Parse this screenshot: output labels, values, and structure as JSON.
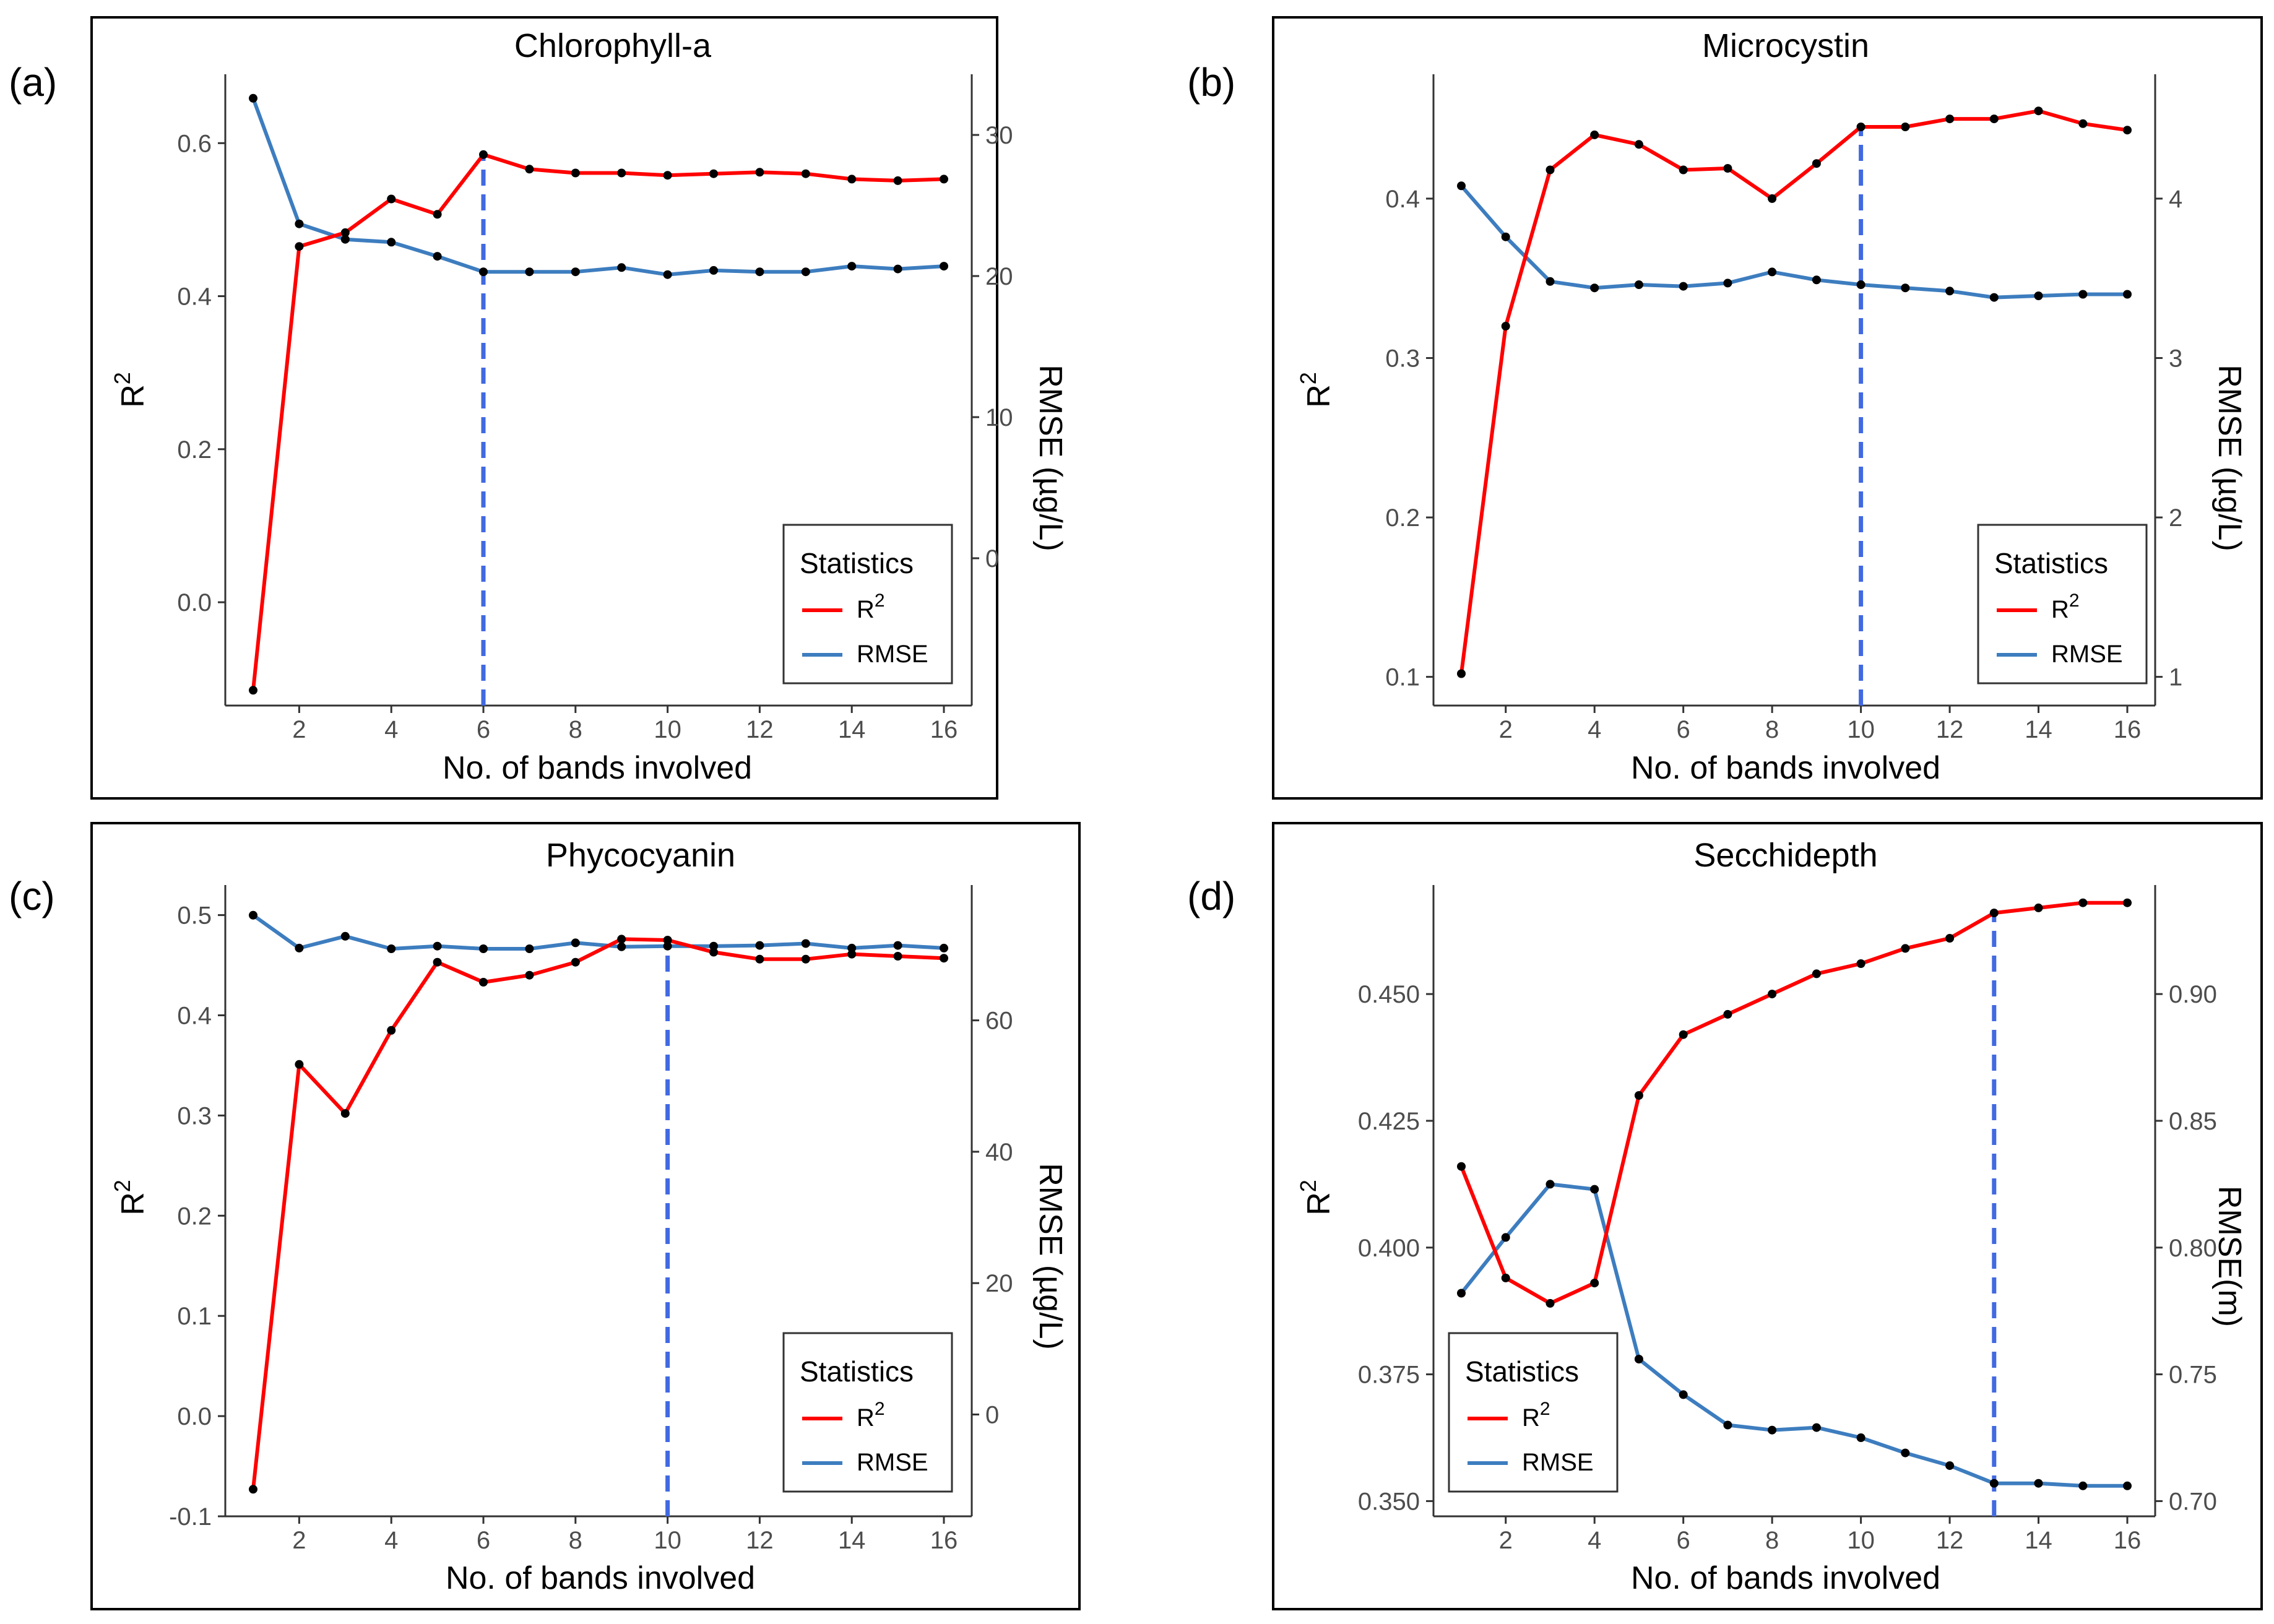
{
  "colors": {
    "r2": "#ff0000",
    "rmse": "#3d7dbf",
    "marker": "#000000",
    "vline": "#4169e1",
    "frame": "#000000"
  },
  "chart_data": [
    {
      "type": "line",
      "letter": "(a)",
      "title": "Chlorophyll-a",
      "xlabel": "No. of bands involved",
      "ylabel_main": "R",
      "ylabel_sup": "2",
      "y2label": "RMSE (µg/L)",
      "x": [
        1,
        2,
        3,
        4,
        5,
        6,
        7,
        8,
        9,
        10,
        11,
        12,
        13,
        14,
        15,
        16
      ],
      "xticks": [
        "2",
        "4",
        "6",
        "8",
        "10",
        "12",
        "14",
        "16"
      ],
      "xtick_values": [
        2,
        4,
        6,
        8,
        10,
        12,
        14,
        16
      ],
      "ylim": [
        -0.135,
        0.69
      ],
      "yticks": [
        "0.0",
        "0.2",
        "0.4",
        "0.6"
      ],
      "ytick_values": [
        0.0,
        0.2,
        0.4,
        0.6
      ],
      "y2lim": [
        -10.44,
        34.3
      ],
      "y2ticks": [
        "0",
        "10",
        "20",
        "30"
      ],
      "y2tick_values": [
        0,
        10,
        20,
        30
      ],
      "vline_x": 6,
      "series": [
        {
          "name": "R2",
          "axis": "left",
          "values": [
            -0.115,
            0.465,
            0.483,
            0.527,
            0.507,
            0.585,
            0.566,
            0.561,
            0.561,
            0.558,
            0.56,
            0.562,
            0.56,
            0.553,
            0.551,
            0.553
          ]
        },
        {
          "name": "RMSE",
          "axis": "right",
          "values": [
            32.6,
            23.7,
            22.6,
            22.4,
            21.4,
            20.3,
            20.3,
            20.3,
            20.6,
            20.1,
            20.4,
            20.3,
            20.3,
            20.7,
            20.5,
            20.7
          ]
        }
      ],
      "legend": {
        "title": "Statistics",
        "items": [
          {
            "main": "R",
            "sup": "2"
          },
          {
            "main": "RMSE",
            "sup": ""
          }
        ]
      }
    },
    {
      "type": "line",
      "letter": "(b)",
      "title": "Microcystin",
      "xlabel": "No. of bands involved",
      "ylabel_main": "R",
      "ylabel_sup": "2",
      "y2label": "RMSE (µg/L)",
      "x": [
        1,
        2,
        3,
        4,
        5,
        6,
        7,
        8,
        9,
        10,
        11,
        12,
        13,
        14,
        15,
        16
      ],
      "xticks": [
        "2",
        "4",
        "6",
        "8",
        "10",
        "12",
        "14",
        "16"
      ],
      "xtick_values": [
        2,
        4,
        6,
        8,
        10,
        12,
        14,
        16
      ],
      "ylim": [
        0.082,
        0.478
      ],
      "yticks": [
        "0.1",
        "0.2",
        "0.3",
        "0.4"
      ],
      "ytick_values": [
        0.1,
        0.2,
        0.3,
        0.4
      ],
      "y2lim": [
        0.82,
        4.78
      ],
      "y2ticks": [
        "1",
        "2",
        "3",
        "4"
      ],
      "y2tick_values": [
        1,
        2,
        3,
        4
      ],
      "vline_x": 10,
      "series": [
        {
          "name": "R2",
          "axis": "left",
          "values": [
            0.102,
            0.32,
            0.418,
            0.44,
            0.434,
            0.418,
            0.419,
            0.4,
            0.422,
            0.445,
            0.445,
            0.45,
            0.45,
            0.455,
            0.447,
            0.443
          ]
        },
        {
          "name": "RMSE",
          "axis": "right",
          "values": [
            4.08,
            3.76,
            3.48,
            3.44,
            3.46,
            3.45,
            3.47,
            3.54,
            3.49,
            3.46,
            3.44,
            3.42,
            3.38,
            3.39,
            3.4,
            3.4
          ]
        }
      ],
      "legend": {
        "title": "Statistics",
        "items": [
          {
            "main": "R",
            "sup": "2"
          },
          {
            "main": "RMSE",
            "sup": ""
          }
        ]
      }
    },
    {
      "type": "line",
      "letter": "(c)",
      "title": "Phycocyanin",
      "xlabel": "No. of bands involved",
      "ylabel_main": "R",
      "ylabel_sup": "2",
      "y2label": "RMSE (µg/L)",
      "x": [
        1,
        2,
        3,
        4,
        5,
        6,
        7,
        8,
        9,
        10,
        11,
        12,
        13,
        14,
        15,
        16
      ],
      "xticks": [
        "2",
        "4",
        "6",
        "8",
        "10",
        "12",
        "14",
        "16"
      ],
      "xtick_values": [
        2,
        4,
        6,
        8,
        10,
        12,
        14,
        16
      ],
      "ylim": [
        -0.1,
        0.53
      ],
      "yticks": [
        "-0.1",
        "0.0",
        "0.1",
        "0.2",
        "0.3",
        "0.4",
        "0.5"
      ],
      "ytick_values": [
        -0.1,
        0.0,
        0.1,
        0.2,
        0.3,
        0.4,
        0.5
      ],
      "y2lim": [
        -15.5,
        80.6
      ],
      "y2ticks": [
        "0",
        "20",
        "40",
        "60"
      ],
      "y2tick_values": [
        0,
        20,
        40,
        60
      ],
      "vline_x": 10,
      "series": [
        {
          "name": "R2",
          "axis": "left",
          "values": [
            -0.073,
            0.351,
            0.302,
            0.385,
            0.453,
            0.433,
            0.44,
            0.453,
            0.476,
            0.475,
            0.463,
            0.456,
            0.456,
            0.461,
            0.459,
            0.457
          ]
        },
        {
          "name": "RMSE",
          "axis": "right",
          "values": [
            76.0,
            71.0,
            72.8,
            70.9,
            71.3,
            70.9,
            70.9,
            71.8,
            71.2,
            71.3,
            71.3,
            71.4,
            71.7,
            71.0,
            71.4,
            71.0
          ]
        }
      ],
      "legend": {
        "title": "Statistics",
        "items": [
          {
            "main": "R",
            "sup": "2"
          },
          {
            "main": "RMSE",
            "sup": ""
          }
        ]
      }
    },
    {
      "type": "line",
      "letter": "(d)",
      "title": "Secchidepth",
      "xlabel": "No. of bands involved",
      "ylabel_main": "R",
      "ylabel_sup": "2",
      "y2label": "RMSE(m)",
      "x": [
        1,
        2,
        3,
        4,
        5,
        6,
        7,
        8,
        9,
        10,
        11,
        12,
        13,
        14,
        15,
        16
      ],
      "xticks": [
        "2",
        "4",
        "6",
        "8",
        "10",
        "12",
        "14",
        "16"
      ],
      "xtick_values": [
        2,
        4,
        6,
        8,
        10,
        12,
        14,
        16
      ],
      "ylim": [
        0.347,
        0.4715
      ],
      "yticks": [
        "0.350",
        "0.375",
        "0.400",
        "0.425",
        "0.450"
      ],
      "ytick_values": [
        0.35,
        0.375,
        0.4,
        0.425,
        0.45
      ],
      "y2lim": [
        0.694,
        0.943
      ],
      "y2ticks": [
        "0.70",
        "0.75",
        "0.80",
        "0.85",
        "0.90"
      ],
      "y2tick_values": [
        0.7,
        0.75,
        0.8,
        0.85,
        0.9
      ],
      "vline_x": 13,
      "series": [
        {
          "name": "R2",
          "axis": "left",
          "values": [
            0.416,
            0.394,
            0.389,
            0.393,
            0.43,
            0.442,
            0.446,
            0.45,
            0.454,
            0.456,
            0.459,
            0.461,
            0.466,
            0.467,
            0.468,
            0.468
          ]
        },
        {
          "name": "RMSE",
          "axis": "right",
          "values": [
            0.782,
            0.804,
            0.825,
            0.823,
            0.756,
            0.742,
            0.73,
            0.728,
            0.729,
            0.725,
            0.719,
            0.714,
            0.707,
            0.707,
            0.706,
            0.706
          ]
        }
      ],
      "legend": {
        "title": "Statistics",
        "items": [
          {
            "main": "R",
            "sup": "2"
          },
          {
            "main": "RMSE",
            "sup": ""
          }
        ]
      }
    }
  ]
}
